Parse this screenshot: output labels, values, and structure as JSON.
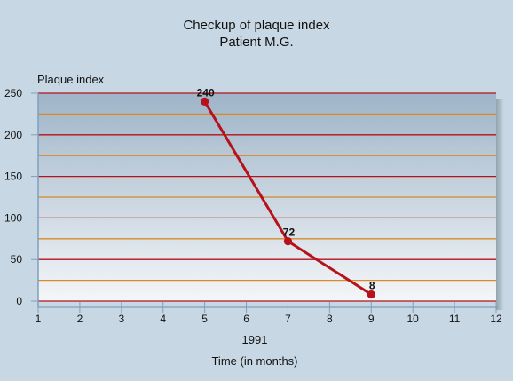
{
  "title": "Checkup of plaque index",
  "subtitle": "Patient M.G.",
  "chart_data": {
    "type": "line",
    "title": "Checkup of plaque index",
    "subtitle": "Patient M.G.",
    "ylabel": "Plaque index",
    "xlabel": "Time (in months)",
    "xlabel_secondary": "1991",
    "xlim": [
      1,
      12
    ],
    "ylim": [
      0,
      250
    ],
    "x_ticks": [
      "1",
      "2",
      "3",
      "4",
      "5",
      "6",
      "7",
      "8",
      "9",
      "10",
      "11",
      "12"
    ],
    "y_ticks": [
      "0",
      "50",
      "100",
      "150",
      "200",
      "250"
    ],
    "grid": true,
    "series": [
      {
        "x": [
          5,
          7,
          9
        ],
        "values": [
          240,
          72,
          8
        ],
        "data_labels": [
          "240",
          "72",
          "8"
        ],
        "color": "#b5121b"
      }
    ],
    "colors": {
      "major_grid": "#b5121b",
      "minor_grid": "#d9892a",
      "plot_top": "#9eb4c8",
      "plot_bottom": "#f4f6f8",
      "axis": "#7f9fbd"
    }
  }
}
